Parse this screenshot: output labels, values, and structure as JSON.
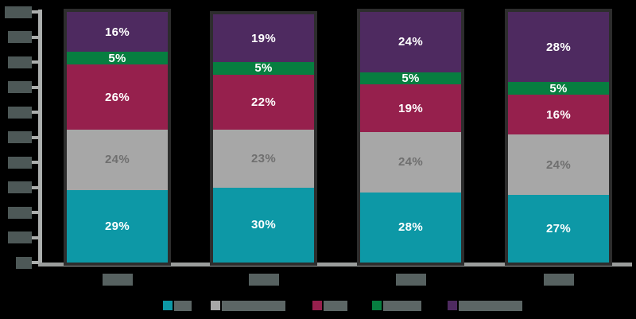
{
  "window": {
    "background": "#000000"
  },
  "palette": {
    "teal": "#0D98A6",
    "silver": "#A7A7A7",
    "crimson": "#96204D",
    "green": "#077E40",
    "purple": "#4E2A60",
    "axis_line": "#ABAEAD",
    "baseline": "#9A9D9C",
    "bar_outline": "#2D2D2D",
    "redacted_axis_label": "#4D5857",
    "redacted_category_label": "#566160",
    "redacted_legend_label": "#5C6665",
    "label_on_silver": "#6F6F6F",
    "label_on_dark": "#FFFFFF"
  },
  "chart_data": {
    "type": "bar",
    "stacked": true,
    "orientation": "vertical",
    "title": "",
    "xlabel": "",
    "ylabel": "",
    "categories": [
      "",
      "",
      "",
      ""
    ],
    "categories_redacted": true,
    "series": [
      {
        "name": "",
        "color_key": "teal",
        "label_color_key": "label_on_dark",
        "values": [
          29,
          30,
          28,
          27
        ]
      },
      {
        "name": "",
        "color_key": "silver",
        "label_color_key": "label_on_silver",
        "values": [
          24,
          23,
          24,
          24
        ]
      },
      {
        "name": "",
        "color_key": "crimson",
        "label_color_key": "label_on_dark",
        "values": [
          26,
          22,
          19,
          16
        ]
      },
      {
        "name": "",
        "color_key": "green",
        "label_color_key": "label_on_dark",
        "values": [
          5,
          5,
          5,
          5
        ]
      },
      {
        "name": "",
        "color_key": "purple",
        "label_color_key": "label_on_dark",
        "values": [
          16,
          19,
          24,
          28
        ]
      }
    ],
    "series_names_redacted": true,
    "segment_label_format": "{value}%",
    "segment_labels": [
      [
        "29%",
        "30%",
        "28%",
        "27%"
      ],
      [
        "24%",
        "23%",
        "24%",
        "24%"
      ],
      [
        "26%",
        "22%",
        "19%",
        "16%"
      ],
      [
        "5%",
        "5%",
        "5%",
        "5%"
      ],
      [
        "16%",
        "19%",
        "24%",
        "28%"
      ]
    ],
    "ylim": [
      0,
      100
    ],
    "y_axis": {
      "tick_step_percent": 10,
      "tick_count": 11,
      "labels_redacted": true
    },
    "grid": false,
    "legend_position": "bottom"
  },
  "legend": {
    "entries": [
      {
        "color_key": "teal",
        "label": "",
        "label_redacted": true,
        "label_block_width": 22
      },
      {
        "color_key": "silver",
        "label": "",
        "label_redacted": true,
        "label_block_width": 80
      },
      {
        "color_key": "crimson",
        "label": "",
        "label_redacted": true,
        "label_block_width": 30
      },
      {
        "color_key": "green",
        "label": "",
        "label_redacted": true,
        "label_block_width": 48
      },
      {
        "color_key": "purple",
        "label": "",
        "label_redacted": true,
        "label_block_width": 80
      }
    ]
  }
}
